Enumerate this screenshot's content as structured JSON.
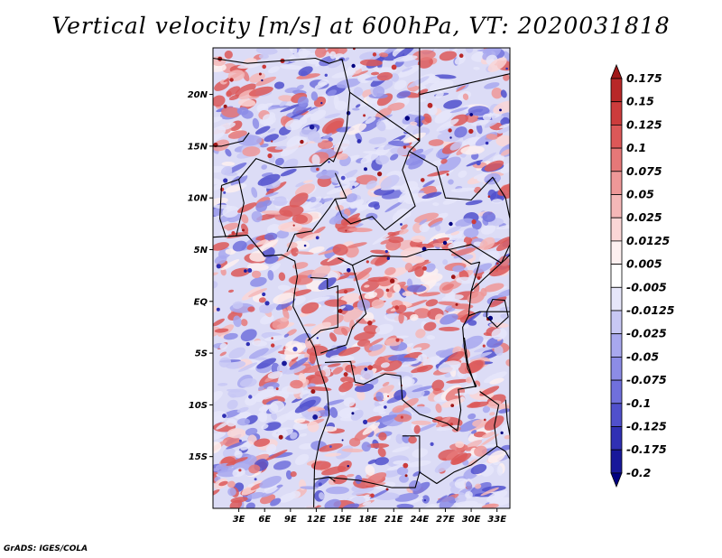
{
  "title": "Vertical velocity [m/s] at 600hPa, VT: 2020031818",
  "credit": "GrADS: IGES/COLA",
  "map": {
    "lat_labels": [
      "20N",
      "15N",
      "10N",
      "5N",
      "EQ",
      "5S",
      "10S",
      "15S"
    ],
    "lat_values": [
      20,
      15,
      10,
      5,
      0,
      -5,
      -10,
      -15
    ],
    "lon_labels": [
      "3E",
      "6E",
      "9E",
      "12E",
      "15E",
      "18E",
      "21E",
      "24E",
      "27E",
      "30E",
      "33E"
    ],
    "lon_values": [
      3,
      6,
      9,
      12,
      15,
      18,
      21,
      24,
      27,
      30,
      33
    ],
    "lat_range": [
      -20,
      24.5
    ],
    "lon_range": [
      0,
      34.5
    ]
  },
  "colorbar": {
    "labels": [
      "0.175",
      "0.15",
      "0.125",
      "0.1",
      "0.075",
      "0.05",
      "0.025",
      "0.0125",
      "0.005",
      "-0.005",
      "-0.0125",
      "-0.025",
      "-0.05",
      "-0.075",
      "-0.1",
      "-0.125",
      "-0.175",
      "-0.2"
    ],
    "colors": [
      "#a01818",
      "#b82828",
      "#cc3c3c",
      "#dc5858",
      "#e67878",
      "#ee9898",
      "#f5b8b8",
      "#fad6d6",
      "#fdf0f0",
      "#ffffff",
      "#e6e6fa",
      "#c8c8f4",
      "#a8a8ee",
      "#8c8ce6",
      "#7070dc",
      "#5050cc",
      "#3030b4",
      "#18189a",
      "#000080"
    ]
  }
}
